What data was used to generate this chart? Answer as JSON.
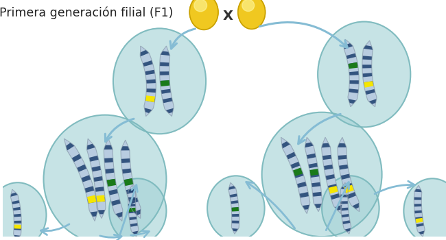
{
  "title_text": "Primera generación filial (F1)",
  "bg_color": "#ffffff",
  "cell_color": "#a8d5d8",
  "cell_edge": "#7ab8bc",
  "cell_alpha": 0.65,
  "chrom_body": "#b8cce0",
  "chrom_dark": "#1c3f6e",
  "chrom_edge": "#8899aa",
  "marker_yellow": "#f5e600",
  "marker_green": "#1a7a1a",
  "arrow_color": "#85bcd4",
  "egg_color": "#f0c820",
  "egg_outline": "#c8a000",
  "title_fontsize": 12.5,
  "figw": 6.5,
  "figh": 3.5,
  "dpi": 100
}
